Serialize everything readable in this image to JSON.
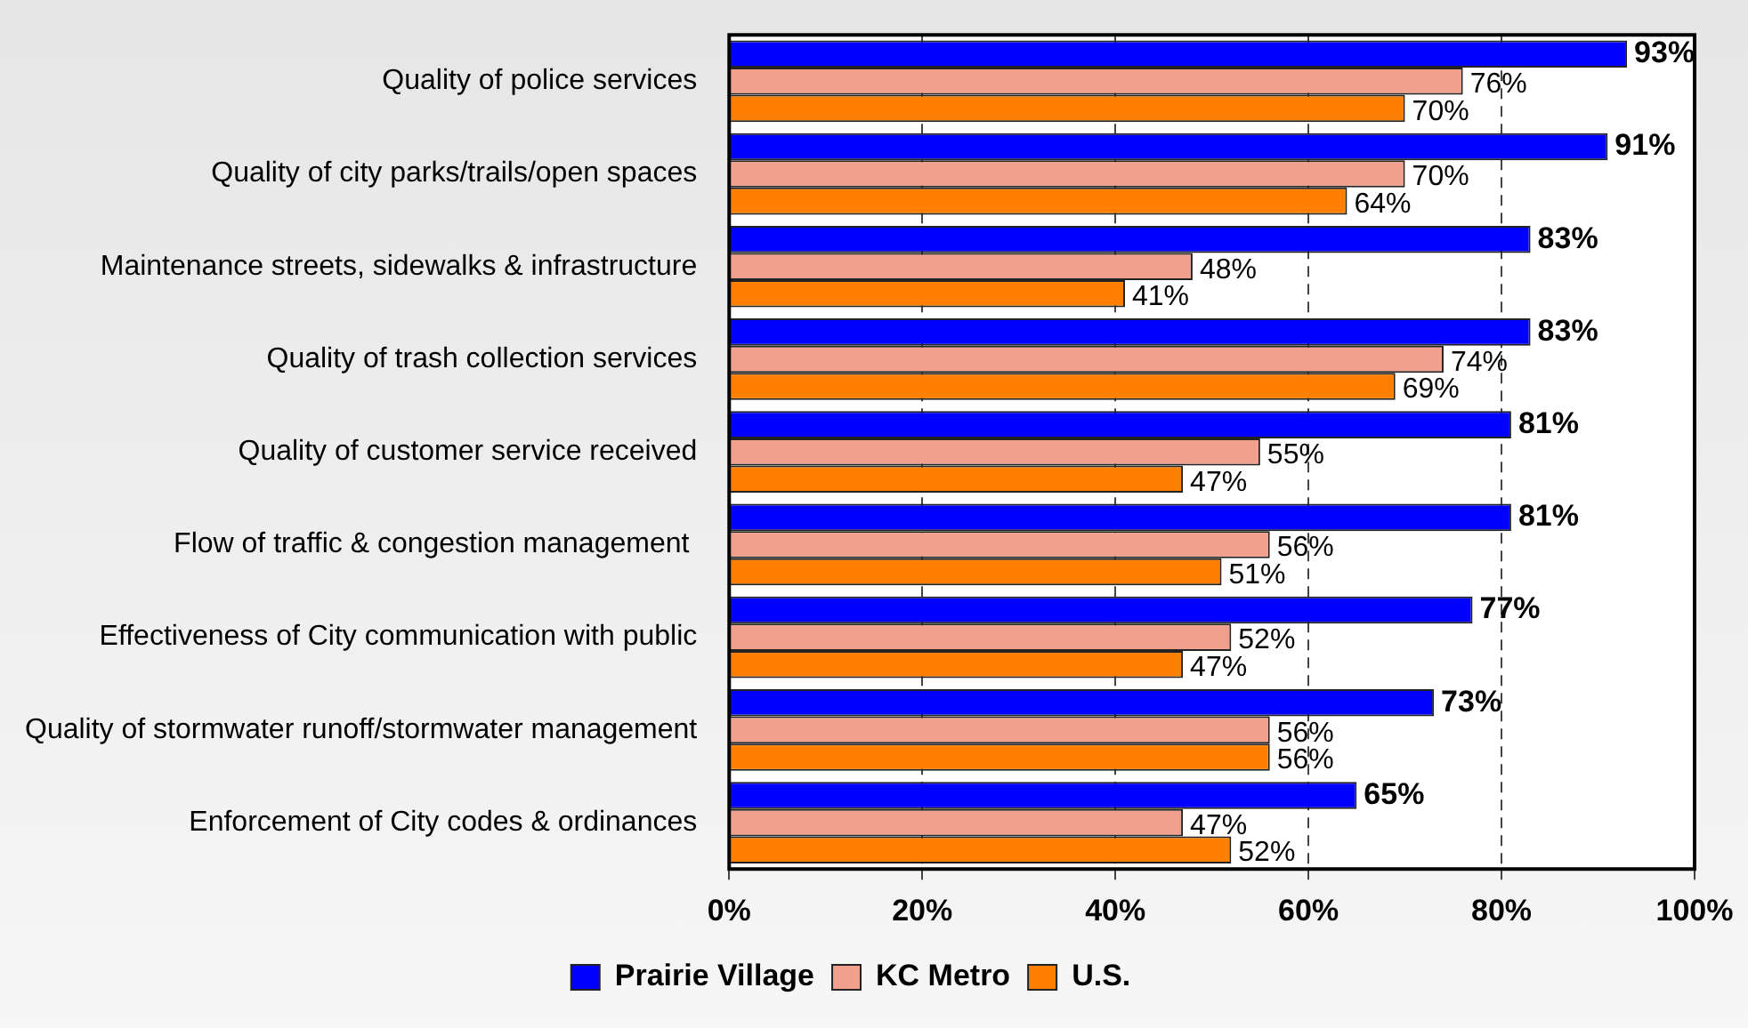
{
  "chart_data": {
    "type": "bar",
    "orientation": "horizontal",
    "categories": [
      "Quality of police services",
      "Quality of city parks/trails/open spaces",
      "Maintenance streets, sidewalks & infrastructure",
      "Quality of trash collection services",
      "Quality of customer service received",
      "Flow of traffic & congestion management ",
      "Effectiveness of City communication with public",
      "Quality of stormwater runoff/stormwater management",
      "Enforcement of City codes & ordinances"
    ],
    "series": [
      {
        "name": "Prairie Village",
        "color": "#0000ff",
        "values": [
          93,
          91,
          83,
          83,
          81,
          81,
          77,
          73,
          65
        ],
        "value_labels": [
          "93%",
          "91%",
          "83%",
          "83%",
          "81%",
          "81%",
          "77%",
          "73%",
          "65%"
        ]
      },
      {
        "name": "KC Metro",
        "color": "#f0a08c",
        "values": [
          76,
          70,
          48,
          74,
          55,
          56,
          52,
          56,
          47
        ],
        "value_labels": [
          "76%",
          "70%",
          "48%",
          "74%",
          "55%",
          "56%",
          "52%",
          "56%",
          "47%"
        ]
      },
      {
        "name": "U.S.",
        "color": "#ff8000",
        "values": [
          70,
          64,
          41,
          69,
          47,
          51,
          47,
          56,
          52
        ],
        "value_labels": [
          "70%",
          "64%",
          "41%",
          "69%",
          "47%",
          "51%",
          "47%",
          "56%",
          "52%"
        ]
      }
    ],
    "xlim": [
      0,
      100
    ],
    "xticks": [
      {
        "value": 0,
        "label": "0%"
      },
      {
        "value": 20,
        "label": "20%"
      },
      {
        "value": 40,
        "label": "40%"
      },
      {
        "value": 60,
        "label": "60%"
      },
      {
        "value": 80,
        "label": "80%"
      },
      {
        "value": 100,
        "label": "100%"
      }
    ],
    "grid": "x",
    "line_style": "dashed",
    "legend": "bottom"
  }
}
